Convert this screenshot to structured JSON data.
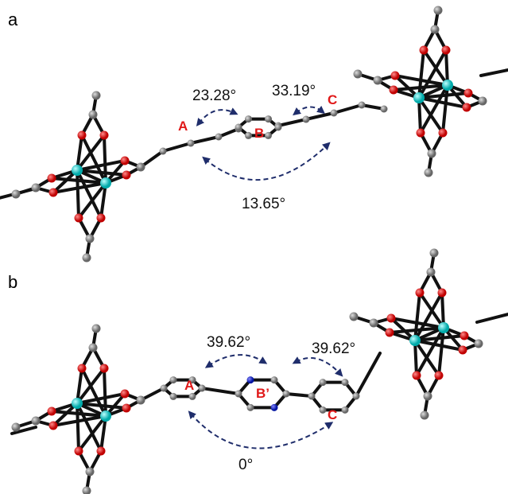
{
  "panels": [
    {
      "label": "a",
      "rings": [
        "A",
        "B",
        "C"
      ],
      "angles": [
        "23.28°",
        "33.19°",
        "13.65°"
      ]
    },
    {
      "label": "b",
      "rings": [
        "A",
        "B’",
        "C"
      ],
      "angles": [
        "39.62°",
        "39.62°",
        "0°"
      ]
    }
  ]
}
